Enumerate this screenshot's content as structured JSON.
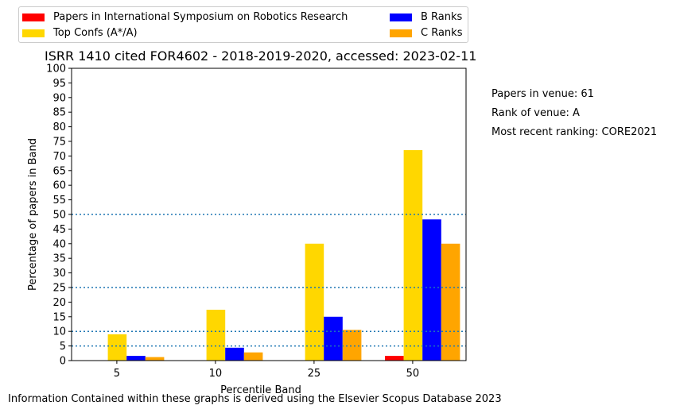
{
  "chart_data": {
    "type": "bar",
    "title": "ISRR 1410 cited FOR4602 - 2018-2019-2020, accessed: 2023-02-11",
    "xlabel": "Percentile Band",
    "ylabel": "Percentage of papers in Band",
    "categories": [
      "5",
      "10",
      "25",
      "50"
    ],
    "ylim": [
      0,
      100
    ],
    "yticks": [
      "0",
      "5",
      "10",
      "15",
      "20",
      "25",
      "30",
      "35",
      "40",
      "45",
      "50",
      "55",
      "60",
      "65",
      "70",
      "75",
      "80",
      "85",
      "90",
      "95",
      "100"
    ],
    "reference_lines": [
      5,
      10,
      25,
      50
    ],
    "series": [
      {
        "name": "Papers in International Symposium on Robotics Research",
        "color": "#ff0000",
        "values": [
          0,
          0,
          0,
          1.6
        ]
      },
      {
        "name": "Top Confs (A*/A)",
        "color": "#ffd700",
        "values": [
          9.0,
          17.4,
          40.0,
          72.0
        ]
      },
      {
        "name": "B Ranks",
        "color": "#0000ff",
        "values": [
          1.6,
          4.4,
          15.0,
          48.3
        ]
      },
      {
        "name": "C Ranks",
        "color": "#ffa500",
        "values": [
          1.2,
          2.8,
          10.5,
          40.0
        ]
      }
    ],
    "legend_position": "top"
  },
  "side_info": {
    "papers_in_venue": "Papers in venue: 61",
    "rank_of_venue": "Rank of venue: A",
    "most_recent_ranking": "Most recent ranking: CORE2021"
  },
  "footer": "Information Contained within these graphs is derived using the Elsevier Scopus Database 2023"
}
